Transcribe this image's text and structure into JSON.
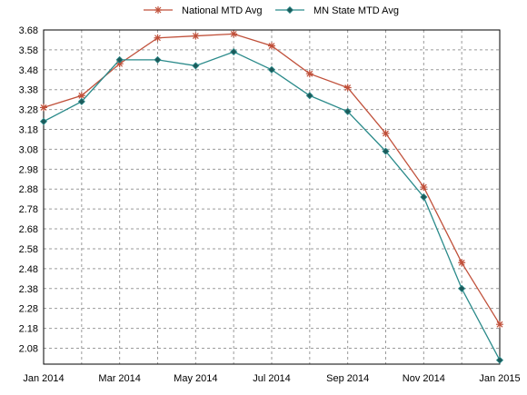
{
  "chart_data": {
    "type": "line",
    "title": "",
    "xlabel": "",
    "ylabel": "",
    "legend_position": "top-center",
    "grid": true,
    "grid_style": "dashed",
    "ylim": [
      2.0,
      3.68
    ],
    "y_ticks": [
      "3.68",
      "3.58",
      "3.48",
      "3.38",
      "3.28",
      "3.18",
      "3.08",
      "2.98",
      "2.88",
      "2.78",
      "2.68",
      "2.58",
      "2.48",
      "2.38",
      "2.28",
      "2.18",
      "2.08"
    ],
    "y_tick_values": [
      3.68,
      3.58,
      3.48,
      3.38,
      3.28,
      3.18,
      3.08,
      2.98,
      2.88,
      2.78,
      2.68,
      2.58,
      2.48,
      2.38,
      2.28,
      2.18,
      2.08
    ],
    "x_ticks": [
      "Jan 2014",
      "Mar 2014",
      "May 2014",
      "Jul 2014",
      "Sep 2014",
      "Nov 2014",
      "Jan 2015"
    ],
    "x": [
      "Jan 2014",
      "Feb 2014",
      "Mar 2014",
      "Apr 2014",
      "May 2014",
      "Jun 2014",
      "Jul 2014",
      "Aug 2014",
      "Sep 2014",
      "Oct 2014",
      "Nov 2014",
      "Dec 2014",
      "Jan 2015"
    ],
    "series": [
      {
        "name": "National MTD Avg",
        "color": "#c0503a",
        "marker": "asterisk",
        "values": [
          3.29,
          3.35,
          3.51,
          3.64,
          3.65,
          3.66,
          3.6,
          3.46,
          3.39,
          3.16,
          2.89,
          2.51,
          2.2
        ]
      },
      {
        "name": "MN State MTD Avg",
        "color": "#2a8a8a",
        "marker": "diamond",
        "values": [
          3.22,
          3.32,
          3.53,
          3.53,
          3.5,
          3.57,
          3.48,
          3.35,
          3.27,
          3.07,
          2.84,
          2.38,
          2.02
        ]
      }
    ]
  }
}
